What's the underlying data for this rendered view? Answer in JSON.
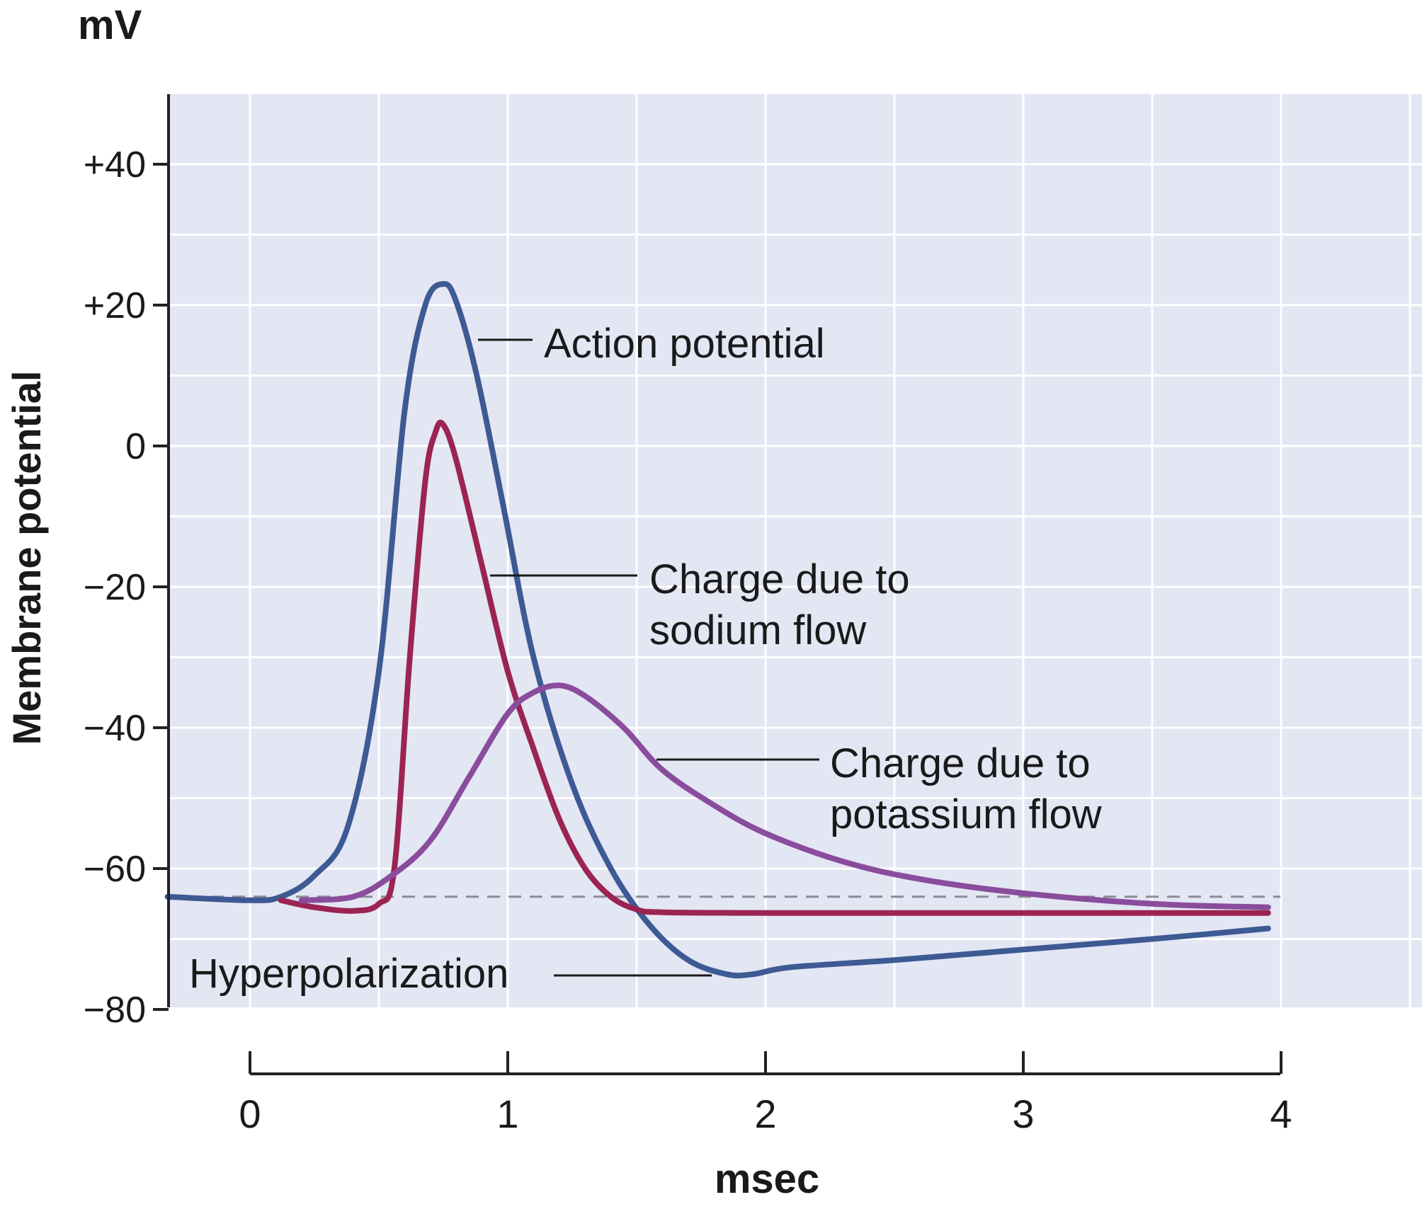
{
  "chart_data": {
    "type": "line",
    "ylabel_unit": "mV",
    "ylabel": "Membrane potential",
    "xlabel": "msec",
    "xlim": [
      -0.3,
      4.5
    ],
    "ylim": [
      -80,
      50
    ],
    "yticks": [
      40,
      20,
      0,
      -20,
      -40,
      -60,
      -80
    ],
    "ytick_labels": [
      "+40",
      "+20",
      "0",
      "−20",
      "−40",
      "−60",
      "−80"
    ],
    "xticks": [
      0,
      1,
      2,
      3,
      4
    ],
    "xtick_labels": [
      "0",
      "1",
      "2",
      "3",
      "4"
    ],
    "grid": true,
    "resting_potential": -64,
    "series": [
      {
        "name": "Action potential",
        "color": "#3d5a94",
        "x": [
          -0.32,
          0.0,
          0.12,
          0.25,
          0.38,
          0.5,
          0.6,
          0.68,
          0.75,
          0.8,
          0.88,
          0.98,
          1.1,
          1.25,
          1.4,
          1.55,
          1.7,
          1.85,
          1.95,
          2.1,
          2.5,
          3.0,
          3.5,
          3.95
        ],
        "y": [
          -64,
          -64.5,
          -64,
          -61,
          -54,
          -32,
          5,
          20,
          23,
          20.5,
          10,
          -8,
          -30,
          -48,
          -60,
          -68,
          -73,
          -75,
          -75,
          -74,
          -73,
          -71.5,
          -70,
          -68.5
        ]
      },
      {
        "name": "Charge due to sodium flow",
        "color": "#9b2452",
        "x": [
          0.12,
          0.25,
          0.4,
          0.5,
          0.56,
          0.62,
          0.68,
          0.72,
          0.75,
          0.8,
          0.9,
          1.0,
          1.1,
          1.2,
          1.3,
          1.4,
          1.5,
          1.6,
          2.0,
          3.0,
          3.95
        ],
        "y": [
          -64.5,
          -65.5,
          -66,
          -65,
          -60,
          -30,
          -5,
          2,
          3,
          -2,
          -17,
          -32,
          -43,
          -53,
          -60,
          -64,
          -65.8,
          -66.2,
          -66.3,
          -66.3,
          -66.3
        ]
      },
      {
        "name": "Charge due to potassium flow",
        "color": "#8a4c9c",
        "x": [
          0.2,
          0.4,
          0.55,
          0.7,
          0.85,
          1.0,
          1.1,
          1.2,
          1.3,
          1.45,
          1.6,
          1.8,
          2.0,
          2.3,
          2.6,
          3.0,
          3.5,
          3.95
        ],
        "y": [
          -64.5,
          -64,
          -61,
          -56,
          -47,
          -38,
          -35,
          -34,
          -35.5,
          -40,
          -46,
          -51,
          -55,
          -59,
          -61.5,
          -63.5,
          -65,
          -65.5
        ]
      }
    ],
    "annotations": [
      {
        "text": "Action potential",
        "target_x": 0.87,
        "target_y": 15
      },
      {
        "lines": [
          "Charge due to",
          "sodium flow"
        ],
        "target_x": 0.92,
        "target_y": -18.5
      },
      {
        "lines": [
          "Charge due to",
          "potassium flow"
        ],
        "target_x": 1.55,
        "target_y": -44.5
      },
      {
        "text": "Hyperpolarization",
        "target_x": 1.85,
        "target_y": -74.5
      }
    ]
  }
}
